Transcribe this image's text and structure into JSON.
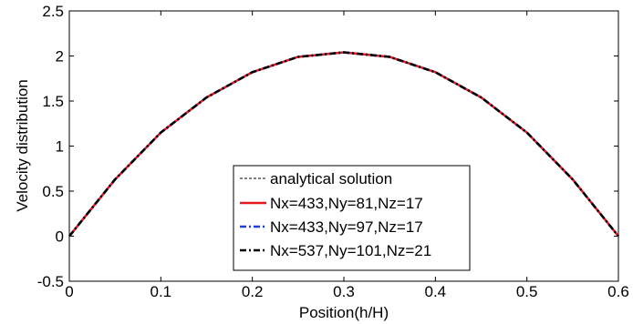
{
  "chart_data": {
    "type": "line",
    "xlabel": "Position(h/H)",
    "ylabel": "Velocity distribution",
    "xlim": [
      0,
      0.6
    ],
    "ylim": [
      -0.5,
      2.5
    ],
    "xticks": [
      "0",
      "0.1",
      "0.2",
      "0.3",
      "0.4",
      "0.5",
      "0.6"
    ],
    "yticks": [
      "-0.5",
      "0",
      "0.5",
      "1",
      "1.5",
      "2",
      "2.5"
    ],
    "grid": false,
    "legend_position": "bottom-center",
    "x": [
      0,
      0.05,
      0.1,
      0.15,
      0.2,
      0.25,
      0.3,
      0.35,
      0.4,
      0.45,
      0.5,
      0.55,
      0.6
    ],
    "series": [
      {
        "name": "analytical solution",
        "color": "#000000",
        "style": "dashed",
        "values": [
          0,
          0.63,
          1.15,
          1.54,
          1.82,
          1.99,
          2.04,
          1.99,
          1.82,
          1.54,
          1.15,
          0.63,
          0
        ]
      },
      {
        "name": "Nx=433,Ny=81,Nz=17",
        "color": "#e8171f",
        "style": "solid",
        "values": [
          0,
          0.63,
          1.15,
          1.54,
          1.82,
          1.99,
          2.04,
          1.99,
          1.82,
          1.54,
          1.15,
          0.63,
          0
        ]
      },
      {
        "name": "Nx=433,Ny=97,Nz=17",
        "color": "#1f3fe0",
        "style": "dash-dot",
        "values": [
          0,
          0.63,
          1.15,
          1.54,
          1.82,
          1.99,
          2.04,
          1.99,
          1.82,
          1.54,
          1.15,
          0.63,
          0
        ]
      },
      {
        "name": "Nx=537,Ny=101,Nz=21",
        "color": "#000000",
        "style": "dash-dot",
        "values": [
          0,
          0.63,
          1.15,
          1.54,
          1.82,
          1.99,
          2.04,
          1.99,
          1.82,
          1.54,
          1.15,
          0.63,
          0
        ]
      }
    ]
  }
}
